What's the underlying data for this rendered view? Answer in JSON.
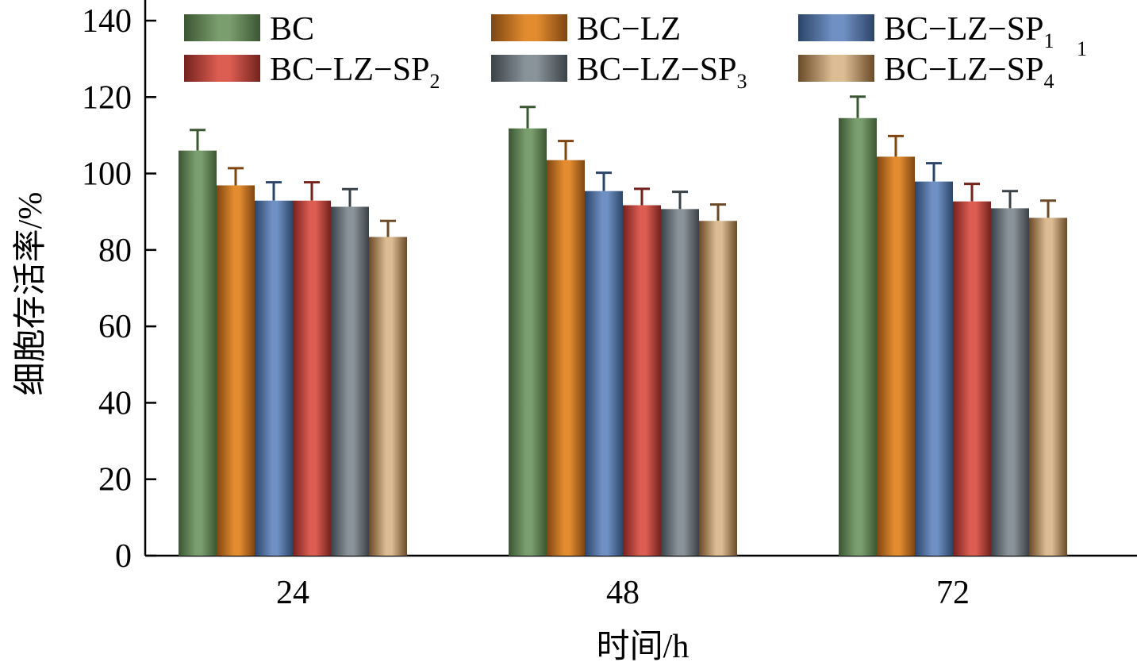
{
  "chart_data": {
    "type": "bar",
    "title": "",
    "xlabel": "时间/h",
    "ylabel": "细胞存活率/%",
    "ylim": [
      0,
      140
    ],
    "yticks": [
      "0",
      "20",
      "40",
      "60",
      "80",
      "100",
      "120",
      "140"
    ],
    "categories": [
      "24",
      "48",
      "72"
    ],
    "legend_placement": "top",
    "legend_stray_superscript": "1",
    "series": [
      {
        "name": "BC",
        "base": "BC",
        "sub": "",
        "values": [
          106.0,
          111.8,
          114.5
        ],
        "errors": [
          5.4,
          5.6,
          5.6
        ],
        "color": "#7a9e6e",
        "dark": "#3b5633"
      },
      {
        "name": "BC−LZ",
        "base": "BC−LZ",
        "sub": "",
        "values": [
          96.9,
          103.5,
          104.4
        ],
        "errors": [
          4.5,
          5.0,
          5.4
        ],
        "color": "#e38c2f",
        "dark": "#7d4512"
      },
      {
        "name": "BC−LZ−SP1",
        "base": "BC−LZ−SP",
        "sub": "1",
        "values": [
          92.9,
          95.4,
          97.9
        ],
        "errors": [
          4.8,
          4.8,
          4.8
        ],
        "color": "#6f90c2",
        "dark": "#2c4468"
      },
      {
        "name": "BC−LZ−SP2",
        "base": "BC−LZ−SP",
        "sub": "2",
        "values": [
          92.9,
          91.7,
          92.7
        ],
        "errors": [
          4.8,
          4.3,
          4.6
        ],
        "color": "#dc5d52",
        "dark": "#74221d"
      },
      {
        "name": "BC−LZ−SP3",
        "base": "BC−LZ−SP",
        "sub": "3",
        "values": [
          91.3,
          90.7,
          90.9
        ],
        "errors": [
          4.6,
          4.5,
          4.5
        ],
        "color": "#89939a",
        "dark": "#3a4247"
      },
      {
        "name": "BC−LZ−SP4",
        "base": "BC−LZ−SP",
        "sub": "4",
        "values": [
          83.4,
          87.6,
          88.4
        ],
        "errors": [
          4.2,
          4.3,
          4.5
        ],
        "color": "#dcbc92",
        "dark": "#6a4a28"
      }
    ]
  }
}
